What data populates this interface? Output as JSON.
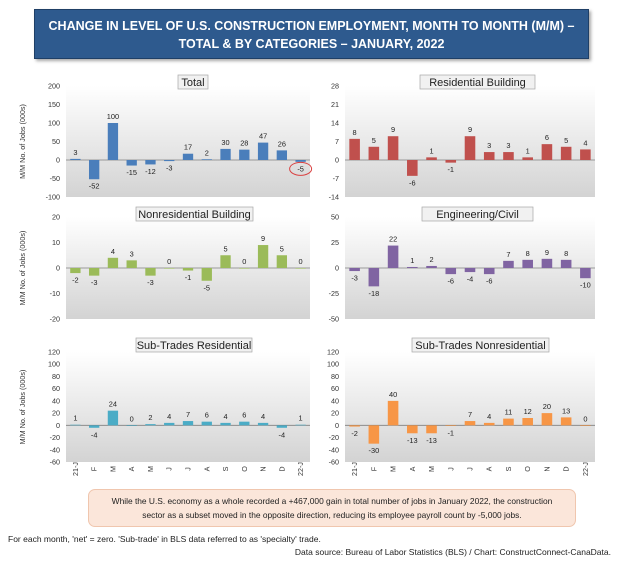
{
  "banner": {
    "line1": "CHANGE IN LEVEL OF U.S. CONSTRUCTION EMPLOYMENT, MONTH TO MONTH (M/M) –",
    "line2": "TOTAL & BY CATEGORIES – JANUARY, 2022"
  },
  "y_axis_label": "M/M No. of Jobs (000s)",
  "months": [
    "21-J",
    "F",
    "M",
    "A",
    "M",
    "J",
    "J",
    "A",
    "S",
    "O",
    "N",
    "D",
    "22-J"
  ],
  "chart_data": [
    {
      "type": "bar",
      "title": "Total",
      "ylabel": "M/M No. of Jobs (000s)",
      "ylim": [
        -100,
        200
      ],
      "yticks": [
        -100,
        -50,
        0,
        50,
        100,
        150,
        200
      ],
      "color": "#4a7ebb",
      "values": [
        3,
        -52,
        100,
        -15,
        -12,
        -3,
        17,
        2,
        30,
        28,
        47,
        26,
        -5
      ],
      "labels": [
        "3",
        "-52",
        "100",
        "-15",
        "-12",
        "-3",
        "17",
        "2",
        "30",
        "28",
        "47",
        "26",
        "-5"
      ],
      "highlight_last": true,
      "highlight_color": "#d94040"
    },
    {
      "type": "bar",
      "title": "Residential Building",
      "ylim": [
        -14,
        28
      ],
      "yticks": [
        -14,
        -7,
        0,
        7,
        14,
        21,
        28
      ],
      "color": "#c0504d",
      "values": [
        8,
        5,
        9,
        -6,
        1,
        -1,
        9,
        3,
        3,
        1,
        6,
        5,
        4
      ],
      "labels": [
        "8",
        "5",
        "9",
        "-6",
        "1",
        "-1",
        "9",
        "3",
        "3",
        "1",
        "6",
        "5",
        "4"
      ]
    },
    {
      "type": "bar",
      "title": "Nonresidential Building",
      "ylabel": "M/M No. of Jobs (000s)",
      "ylim": [
        -20,
        20
      ],
      "yticks": [
        -20,
        -10,
        0,
        10,
        20
      ],
      "color": "#9bbb59",
      "values": [
        -2,
        -3,
        4,
        3,
        -3,
        0,
        -1,
        -5,
        5,
        0,
        9,
        5,
        0
      ],
      "labels": [
        "-2",
        "-3",
        "4",
        "3",
        "-3",
        "0",
        "-1",
        "-5",
        "5",
        "0",
        "9",
        "5",
        "0"
      ]
    },
    {
      "type": "bar",
      "title": "Engineering/Civil",
      "ylim": [
        -50,
        50
      ],
      "yticks": [
        -50,
        -25,
        0,
        25,
        50
      ],
      "color": "#8064a2",
      "values": [
        -3,
        -18,
        22,
        1,
        2,
        -6,
        -4,
        -6,
        7,
        8,
        9,
        8,
        -10
      ],
      "labels": [
        "-3",
        "-18",
        "22",
        "1",
        "2",
        "-6",
        "-4",
        "-6",
        "7",
        "8",
        "9",
        "8",
        "-10"
      ]
    },
    {
      "type": "bar",
      "title": "Sub-Trades Residential",
      "ylabel": "M/M No. of Jobs (000s)",
      "ylim": [
        -60,
        120
      ],
      "yticks": [
        -60,
        -40,
        -20,
        0,
        20,
        40,
        60,
        80,
        100,
        120
      ],
      "color": "#4bacc6",
      "values": [
        1,
        -4,
        24,
        0,
        2,
        4,
        7,
        6,
        4,
        6,
        4,
        -4,
        1
      ],
      "labels": [
        "1",
        "-4",
        "24",
        "0",
        "2",
        "4",
        "7",
        "6",
        "4",
        "6",
        "4",
        "-4",
        "1"
      ]
    },
    {
      "type": "bar",
      "title": "Sub-Trades Nonresidential",
      "ylim": [
        -60,
        120
      ],
      "yticks": [
        -60,
        -40,
        -20,
        0,
        20,
        40,
        60,
        80,
        100,
        120
      ],
      "color": "#f79646",
      "values": [
        -2,
        -30,
        40,
        -13,
        -13,
        -1,
        7,
        4,
        11,
        12,
        20,
        13,
        0
      ],
      "labels": [
        "-2",
        "-30",
        "40",
        "-13",
        "-13",
        "-1",
        "7",
        "4",
        "11",
        "12",
        "20",
        "13",
        "0"
      ]
    }
  ],
  "note": {
    "line1": "While the U.S. economy as a whole recorded a +467,000 gain in total number of jobs in January 2022, the construction",
    "line2": "sector as a subset moved in the opposite direction, reducing its employee payroll count by -5,000 jobs."
  },
  "footnote": "For each month, 'net' = zero. 'Sub-trade' in BLS data referred to as 'specialty' trade.",
  "source": "Data source: Bureau of Labor Statistics (BLS) / Chart: ConstructConnect-CanaData."
}
